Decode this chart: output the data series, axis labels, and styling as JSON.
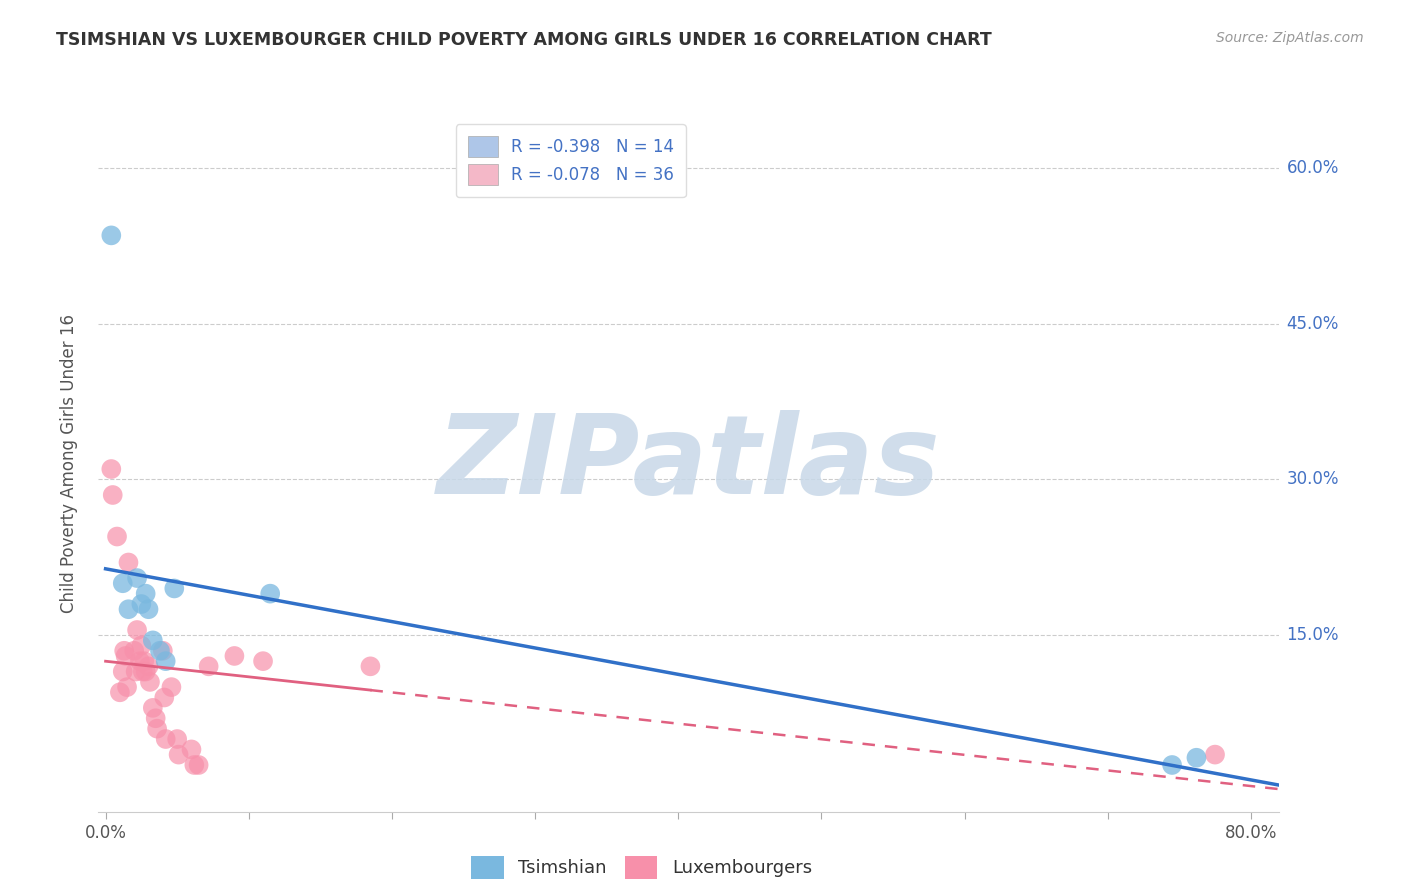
{
  "title": "TSIMSHIAN VS LUXEMBOURGER CHILD POVERTY AMONG GIRLS UNDER 16 CORRELATION CHART",
  "source": "Source: ZipAtlas.com",
  "ylabel": "Child Poverty Among Girls Under 16",
  "xlim": [
    -0.005,
    0.82
  ],
  "ylim": [
    -0.02,
    0.65
  ],
  "xticks": [
    0.0,
    0.1,
    0.2,
    0.3,
    0.4,
    0.5,
    0.6,
    0.7,
    0.8
  ],
  "xticklabels": [
    "0.0%",
    "",
    "",
    "",
    "",
    "",
    "",
    "",
    "80.0%"
  ],
  "ytick_positions": [
    0.15,
    0.3,
    0.45,
    0.6
  ],
  "ytick_labels": [
    "15.0%",
    "30.0%",
    "45.0%",
    "60.0%"
  ],
  "tsimshian_label": "Tsimshian",
  "luxembourger_label": "Luxembourgers",
  "legend_r1": "R = -0.398   N = 14",
  "legend_r2": "R = -0.078   N = 36",
  "tsimshian_patch_color": "#aec6e8",
  "luxembourger_patch_color": "#f4b8c8",
  "tsimshian_color": "#7ab8df",
  "luxembourger_color": "#f790aa",
  "trend_tsimshian_color": "#3070c8",
  "trend_luxembourger_color": "#e06080",
  "background_color": "#ffffff",
  "watermark_text": "ZIPatlas",
  "watermark_color_zip": "#c8d8e8",
  "watermark_color_atlas": "#c8d8e8",
  "grid_color": "#cccccc",
  "title_color": "#333333",
  "source_color": "#999999",
  "tick_color": "#4472c4",
  "tsimshian_x": [
    0.004,
    0.012,
    0.016,
    0.022,
    0.025,
    0.028,
    0.03,
    0.033,
    0.038,
    0.042,
    0.048,
    0.115,
    0.745,
    0.762
  ],
  "tsimshian_y": [
    0.535,
    0.2,
    0.175,
    0.205,
    0.18,
    0.19,
    0.175,
    0.145,
    0.135,
    0.125,
    0.195,
    0.19,
    0.025,
    0.032
  ],
  "luxembourger_x": [
    0.004,
    0.005,
    0.008,
    0.01,
    0.012,
    0.013,
    0.014,
    0.015,
    0.016,
    0.02,
    0.021,
    0.022,
    0.024,
    0.025,
    0.026,
    0.027,
    0.028,
    0.03,
    0.031,
    0.033,
    0.035,
    0.036,
    0.04,
    0.041,
    0.042,
    0.046,
    0.05,
    0.051,
    0.06,
    0.062,
    0.065,
    0.072,
    0.09,
    0.11,
    0.185,
    0.775
  ],
  "luxembourger_y": [
    0.31,
    0.285,
    0.245,
    0.095,
    0.115,
    0.135,
    0.13,
    0.1,
    0.22,
    0.135,
    0.115,
    0.155,
    0.125,
    0.14,
    0.115,
    0.125,
    0.115,
    0.12,
    0.105,
    0.08,
    0.07,
    0.06,
    0.135,
    0.09,
    0.05,
    0.1,
    0.05,
    0.035,
    0.04,
    0.025,
    0.025,
    0.12,
    0.13,
    0.125,
    0.12,
    0.035
  ],
  "trend_blue_x0": 0.0,
  "trend_blue_x1": 0.82,
  "trend_pink_solid_x0": 0.0,
  "trend_pink_solid_x1": 0.185,
  "trend_pink_dash_x1": 0.82
}
